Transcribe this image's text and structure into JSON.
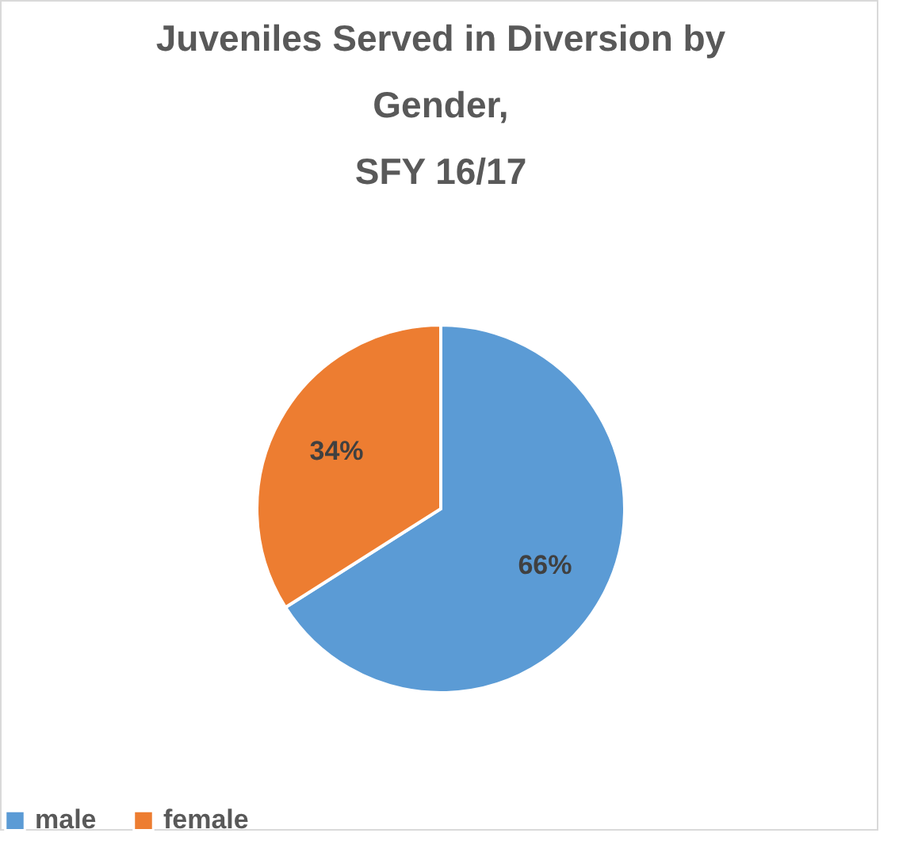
{
  "chart_data": {
    "type": "pie",
    "title": "Juveniles Served in Diversion by Gender, SFY 16/17",
    "categories": [
      "male",
      "female"
    ],
    "values": [
      66,
      34
    ],
    "colors": [
      "#5b9bd5",
      "#ed7d31"
    ],
    "value_labels": [
      "66%",
      "34%"
    ],
    "legend": "bottom"
  }
}
